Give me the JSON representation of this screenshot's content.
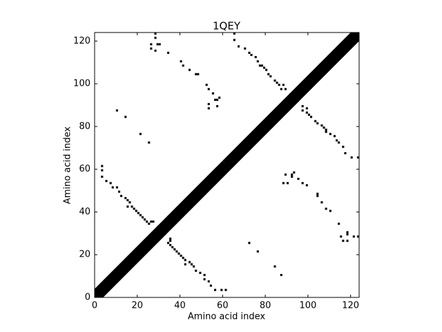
{
  "chart_data": {
    "type": "contact_map",
    "title": "1QEY",
    "x_label": "Amino acid index",
    "y_label": "Amino acid index",
    "xlim": [
      0,
      124
    ],
    "ylim": [
      0,
      124
    ],
    "xticks": [
      0,
      20,
      40,
      60,
      80,
      100,
      120
    ],
    "yticks": [
      0,
      20,
      40,
      60,
      80,
      100,
      120
    ],
    "color": "#000000",
    "diagonal_segments": [
      [
        0,
        30,
        4
      ],
      [
        30,
        33,
        2
      ],
      [
        33,
        60,
        4
      ],
      [
        60,
        64,
        2
      ],
      [
        64,
        92,
        4
      ],
      [
        92,
        95,
        2
      ],
      [
        95,
        124,
        4
      ]
    ],
    "x": [
      3,
      3,
      3,
      5,
      7,
      8,
      10,
      11,
      12,
      14,
      15,
      16,
      15,
      17,
      18,
      19,
      20,
      21,
      22,
      23,
      24,
      26,
      27,
      25,
      28,
      28,
      26,
      29,
      30,
      26,
      28,
      34,
      40,
      41,
      44,
      47,
      48,
      52,
      53,
      55,
      56,
      57,
      58,
      53,
      53,
      57,
      10,
      14,
      21,
      25,
      65,
      65,
      67,
      70,
      72,
      73,
      75,
      76,
      77,
      78,
      79,
      80,
      81,
      82,
      84,
      85,
      86,
      88,
      87,
      89
    ],
    "y": [
      61,
      59,
      56,
      54,
      53,
      51,
      51,
      49,
      47,
      46,
      45,
      44,
      42,
      42,
      41,
      40,
      39,
      38,
      37,
      36,
      35,
      35,
      35,
      34,
      123,
      121,
      118,
      118,
      118,
      116,
      115,
      114,
      110,
      108,
      106,
      104,
      104,
      99,
      97,
      95,
      92,
      92,
      93,
      90,
      88,
      89,
      87,
      84,
      76,
      72,
      123,
      120,
      117,
      116,
      114,
      113,
      112,
      110,
      108,
      108,
      107,
      106,
      104,
      103,
      101,
      100,
      99,
      99,
      97,
      97
    ]
  }
}
